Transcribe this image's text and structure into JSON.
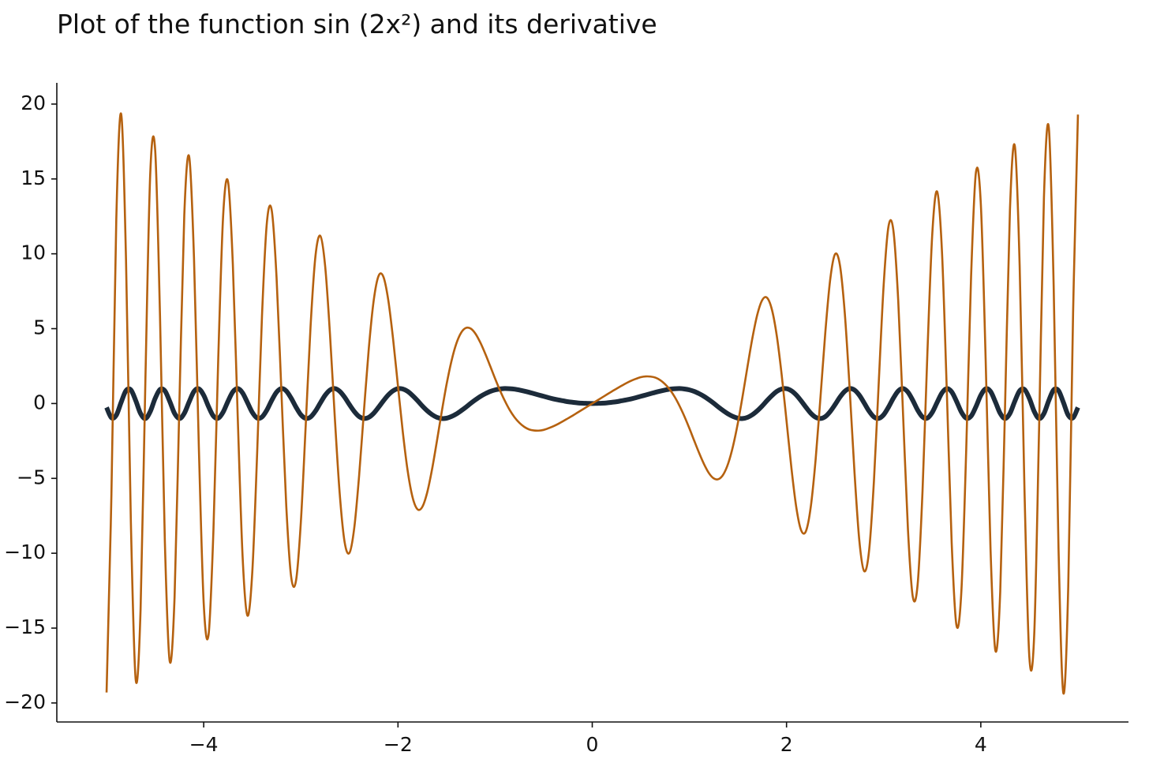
{
  "chart_data": {
    "type": "line",
    "title": "Plot of the function sin (2x²) and its derivative",
    "x": [
      -5,
      -4.95,
      -4.9,
      -4.85,
      -4.8,
      -4.75,
      -4.7,
      -4.65,
      -4.6,
      -4.55,
      -4.5,
      -4.45,
      -4.4,
      -4.35,
      -4.3,
      -4.25,
      -4.2,
      -4.15,
      -4.1,
      -4.05,
      -4,
      -3.95,
      -3.9,
      -3.85,
      -3.8,
      -3.75,
      -3.7,
      -3.65,
      -3.6,
      -3.55,
      -3.5,
      -3.45,
      -3.4,
      -3.35,
      -3.3,
      -3.25,
      -3.2,
      -3.15,
      -3.1,
      -3.05,
      -3,
      -2.95,
      -2.9,
      -2.85,
      -2.8,
      -2.75,
      -2.7,
      -2.65,
      -2.6,
      -2.55,
      -2.5,
      -2.45,
      -2.4,
      -2.35,
      -2.3,
      -2.25,
      -2.2,
      -2.15,
      -2.1,
      -2.05,
      -2,
      -1.95,
      -1.9,
      -1.85,
      -1.8,
      -1.75,
      -1.7,
      -1.65,
      -1.6,
      -1.55,
      -1.5,
      -1.45,
      -1.4,
      -1.35,
      -1.3,
      -1.25,
      -1.2,
      -1.15,
      -1.1,
      -1.05,
      -1,
      -0.95,
      -0.9,
      -0.85,
      -0.8,
      -0.75,
      -0.7,
      -0.65,
      -0.6,
      -0.55,
      -0.5,
      -0.45,
      -0.4,
      -0.35,
      -0.3,
      -0.25,
      -0.2,
      -0.15,
      -0.1,
      -0.05,
      0,
      0.05,
      0.1,
      0.15,
      0.2,
      0.25,
      0.3,
      0.35,
      0.4,
      0.45,
      0.5,
      0.55,
      0.6,
      0.65,
      0.7,
      0.75,
      0.8,
      0.85,
      0.9,
      0.95,
      1,
      1.05,
      1.1,
      1.15,
      1.2,
      1.25,
      1.3,
      1.35,
      1.4,
      1.45,
      1.5,
      1.55,
      1.6,
      1.65,
      1.7,
      1.75,
      1.8,
      1.85,
      1.9,
      1.95,
      2,
      2.05,
      2.1,
      2.15,
      2.2,
      2.25,
      2.3,
      2.35,
      2.4,
      2.45,
      2.5,
      2.55,
      2.6,
      2.65,
      2.7,
      2.75,
      2.8,
      2.85,
      2.9,
      2.95,
      3,
      3.05,
      3.1,
      3.15,
      3.2,
      3.25,
      3.3,
      3.35,
      3.4,
      3.45,
      3.5,
      3.55,
      3.6,
      3.65,
      3.7,
      3.75,
      3.8,
      3.85,
      3.9,
      3.95,
      4,
      4.05,
      4.1,
      4.15,
      4.2,
      4.25,
      4.3,
      4.35,
      4.4,
      4.45,
      4.5,
      4.55,
      4.6,
      4.65,
      4.7,
      4.75,
      4.8,
      4.85,
      4.9,
      4.95,
      5
    ],
    "series": [
      {
        "color": "#1c2b3a",
        "values": [
          -0.26,
          -0.95,
          -0.78,
          0.08,
          0.86,
          0.91,
          0.2,
          -0.67,
          -1,
          -0.53,
          0.34,
          0.94,
          0.85,
          0.15,
          -0.66,
          -1,
          -0.66,
          0.11,
          0.81,
          0.98,
          0.55,
          -0.21,
          -0.84,
          -0.98,
          -0.57,
          0.15,
          0.78,
          1,
          0.71,
          0.07,
          -0.59,
          -0.97,
          -0.9,
          -0.44,
          0.21,
          0.76,
          1,
          0.84,
          0.36,
          -0.24,
          -0.75,
          -0.99,
          -0.9,
          -0.51,
          0.03,
          0.55,
          0.9,
          1,
          0.82,
          0.43,
          -0.07,
          -0.53,
          -0.87,
          -1,
          -0.92,
          -0.65,
          -0.25,
          0.18,
          0.57,
          0.85,
          0.99,
          0.97,
          0.81,
          0.53,
          0.2,
          -0.16,
          -0.48,
          -0.74,
          -0.92,
          -1,
          -0.98,
          -0.87,
          -0.7,
          -0.48,
          -0.24,
          0.02,
          0.26,
          0.48,
          0.66,
          0.81,
          0.91,
          0.97,
          1,
          0.99,
          0.96,
          0.9,
          0.83,
          0.75,
          0.66,
          0.57,
          0.48,
          0.39,
          0.31,
          0.24,
          0.18,
          0.12,
          0.08,
          0.04,
          0.02,
          0.01,
          0,
          0.01,
          0.02,
          0.04,
          0.08,
          0.12,
          0.18,
          0.24,
          0.31,
          0.39,
          0.48,
          0.57,
          0.66,
          0.75,
          0.83,
          0.9,
          0.96,
          0.99,
          1,
          0.97,
          0.91,
          0.81,
          0.66,
          0.48,
          0.26,
          0.02,
          -0.24,
          -0.48,
          -0.7,
          -0.87,
          -0.98,
          -1,
          -0.92,
          -0.74,
          -0.48,
          -0.16,
          0.2,
          0.53,
          0.81,
          0.97,
          0.99,
          0.85,
          0.57,
          0.18,
          -0.25,
          -0.65,
          -0.92,
          -1,
          -0.87,
          -0.53,
          -0.07,
          0.43,
          0.82,
          1,
          0.9,
          0.55,
          0.03,
          -0.51,
          -0.9,
          -0.99,
          -0.75,
          -0.24,
          0.36,
          0.84,
          1,
          0.76,
          0.21,
          -0.44,
          -0.9,
          -0.97,
          -0.59,
          0.07,
          0.71,
          1,
          0.78,
          0.15,
          -0.57,
          -0.98,
          -0.84,
          -0.21,
          0.55,
          0.98,
          0.81,
          0.11,
          -0.66,
          -1,
          -0.66,
          0.15,
          0.85,
          0.94,
          0.34,
          -0.53,
          -1,
          -0.67,
          0.2,
          0.91,
          0.86,
          0.08,
          -0.78,
          -0.95,
          -0.26
        ]
      },
      {
        "color": "#b5610f",
        "values": [
          -19.3,
          -6.04,
          12.27,
          19.34,
          9.66,
          -7.89,
          -18.44,
          -13.77,
          1.67,
          15.42,
          16.96,
          5.86,
          -9.2,
          -17.21,
          -12.93,
          0.07,
          12.58,
          16.5,
          9.71,
          -2.93,
          -13.35,
          -15.45,
          -8.49,
          3.06,
          12.53,
          14.83,
          9.28,
          -0.85,
          -10.17,
          -14.16,
          -11.28,
          -3.34,
          5.85,
          12.06,
          12.91,
          8.42,
          0.77,
          -6.85,
          -11.56,
          -11.84,
          -7.92,
          -1.48,
          5.15,
          9.82,
          11.2,
          9.19,
          4.63,
          -0.98,
          -6.01,
          -9.23,
          -9.98,
          -8.3,
          -4.81,
          -0.46,
          3.71,
          6.88,
          8.52,
          8.46,
          6.91,
          4.29,
          1.16,
          -1.92,
          -4.51,
          -6.26,
          -7.06,
          -6.91,
          -5.96,
          -4.42,
          -2.54,
          -0.57,
          1.27,
          2.82,
          3.99,
          4.73,
          5.05,
          5,
          4.64,
          4.04,
          3.3,
          2.49,
          1.66,
          0.88,
          0.18,
          -0.43,
          -0.92,
          -1.29,
          -1.56,
          -1.73,
          -1.8,
          -1.81,
          -1.76,
          -1.65,
          -1.52,
          -1.36,
          -1.18,
          -0.99,
          -0.8,
          -0.6,
          -0.4,
          -0.2,
          0,
          0.2,
          0.4,
          0.6,
          0.8,
          0.99,
          1.18,
          1.36,
          1.52,
          1.65,
          1.76,
          1.81,
          1.8,
          1.73,
          1.56,
          1.29,
          0.92,
          0.43,
          -0.18,
          -0.88,
          -1.66,
          -2.49,
          -3.3,
          -4.04,
          -4.64,
          -5,
          -5.05,
          -4.73,
          -3.99,
          -2.82,
          -1.27,
          0.57,
          2.54,
          4.42,
          5.96,
          6.91,
          7.06,
          6.26,
          4.51,
          1.92,
          -1.16,
          -4.29,
          -6.91,
          -8.46,
          -8.52,
          -6.88,
          -3.71,
          0.46,
          4.81,
          8.3,
          9.98,
          9.23,
          6.01,
          0.98,
          -4.63,
          -9.19,
          -11.2,
          -9.82,
          -5.15,
          1.48,
          7.92,
          11.84,
          11.56,
          6.85,
          -0.77,
          -8.42,
          -12.91,
          -12.06,
          -5.85,
          3.34,
          11.28,
          14.16,
          10.17,
          0.85,
          -9.28,
          -14.83,
          -12.53,
          -3.06,
          8.49,
          15.45,
          13.35,
          2.93,
          -9.71,
          -16.5,
          -12.58,
          -0.07,
          12.93,
          17.21,
          9.2,
          -5.86,
          -16.96,
          -15.42,
          -1.67,
          13.77,
          18.44,
          7.89,
          -9.66,
          -19.34,
          -12.27,
          6.04,
          19.3
        ]
      }
    ],
    "xlim": [
      -5.5,
      5.5
    ],
    "ylim": [
      -21.27,
      21.27
    ],
    "xticks": [
      {
        "value": -4,
        "label": "−4"
      },
      {
        "value": -2,
        "label": "−2"
      },
      0,
      2,
      4
    ],
    "yticks": [
      {
        "value": -20,
        "label": "−20"
      },
      {
        "value": -15,
        "label": "−15"
      },
      {
        "value": -10,
        "label": "−10"
      },
      {
        "value": -5,
        "label": "−5"
      },
      0,
      5,
      10,
      15,
      20
    ],
    "grid": false
  }
}
